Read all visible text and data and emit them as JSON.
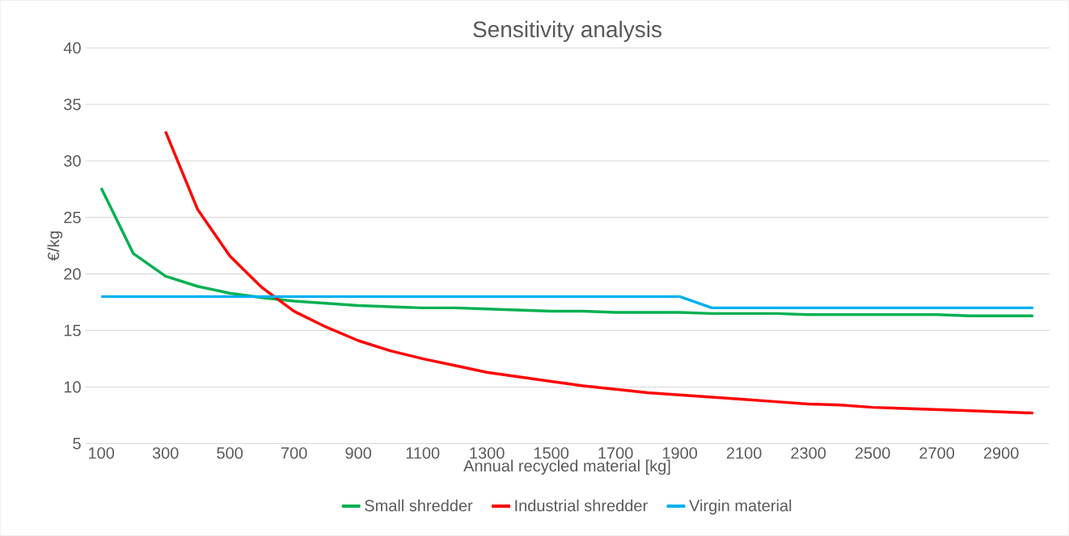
{
  "chart_data": {
    "type": "line",
    "title": "Sensitivity analysis",
    "xlabel": "Annual recycled material [kg]",
    "ylabel": "€/kg",
    "categories": [
      "100",
      null,
      "300",
      null,
      "500",
      null,
      "700",
      null,
      "900",
      null,
      "1100",
      null,
      "1300",
      null,
      "1500",
      null,
      "1700",
      null,
      "1900",
      null,
      "2100",
      null,
      "2300",
      null,
      "2500",
      null,
      "2700",
      null,
      "2900",
      null
    ],
    "series": [
      {
        "name": "Small shredder",
        "color": "#00b050",
        "values": [
          27.6,
          21.8,
          19.8,
          18.9,
          18.3,
          17.9,
          17.6,
          17.4,
          17.2,
          17.1,
          17.0,
          17.0,
          16.9,
          16.8,
          16.7,
          16.7,
          16.6,
          16.6,
          16.6,
          16.5,
          16.5,
          16.5,
          16.4,
          16.4,
          16.4,
          16.4,
          16.4,
          16.3,
          16.3,
          16.3
        ]
      },
      {
        "name": "Industrial shredder",
        "color": "#ff0000",
        "values": [
          null,
          null,
          32.6,
          25.7,
          21.6,
          18.8,
          16.7,
          15.3,
          14.1,
          13.2,
          12.5,
          11.9,
          11.3,
          10.9,
          10.5,
          10.1,
          9.8,
          9.5,
          9.3,
          9.1,
          8.9,
          8.7,
          8.5,
          8.4,
          8.2,
          8.1,
          8.0,
          7.9,
          7.8,
          7.7
        ]
      },
      {
        "name": "Virgin material",
        "color": "#00b0f0",
        "values": [
          18,
          18,
          18,
          18,
          18,
          18,
          18,
          18,
          18,
          18,
          18,
          18,
          18,
          18,
          18,
          18,
          18,
          18,
          18,
          17,
          17,
          17,
          17,
          17,
          17,
          17,
          17,
          17,
          17,
          17
        ]
      }
    ],
    "ylim": [
      5,
      40
    ],
    "yticks": [
      5,
      10,
      15,
      20,
      25,
      30,
      35,
      40
    ],
    "grid": "y",
    "legend": "bottom"
  }
}
